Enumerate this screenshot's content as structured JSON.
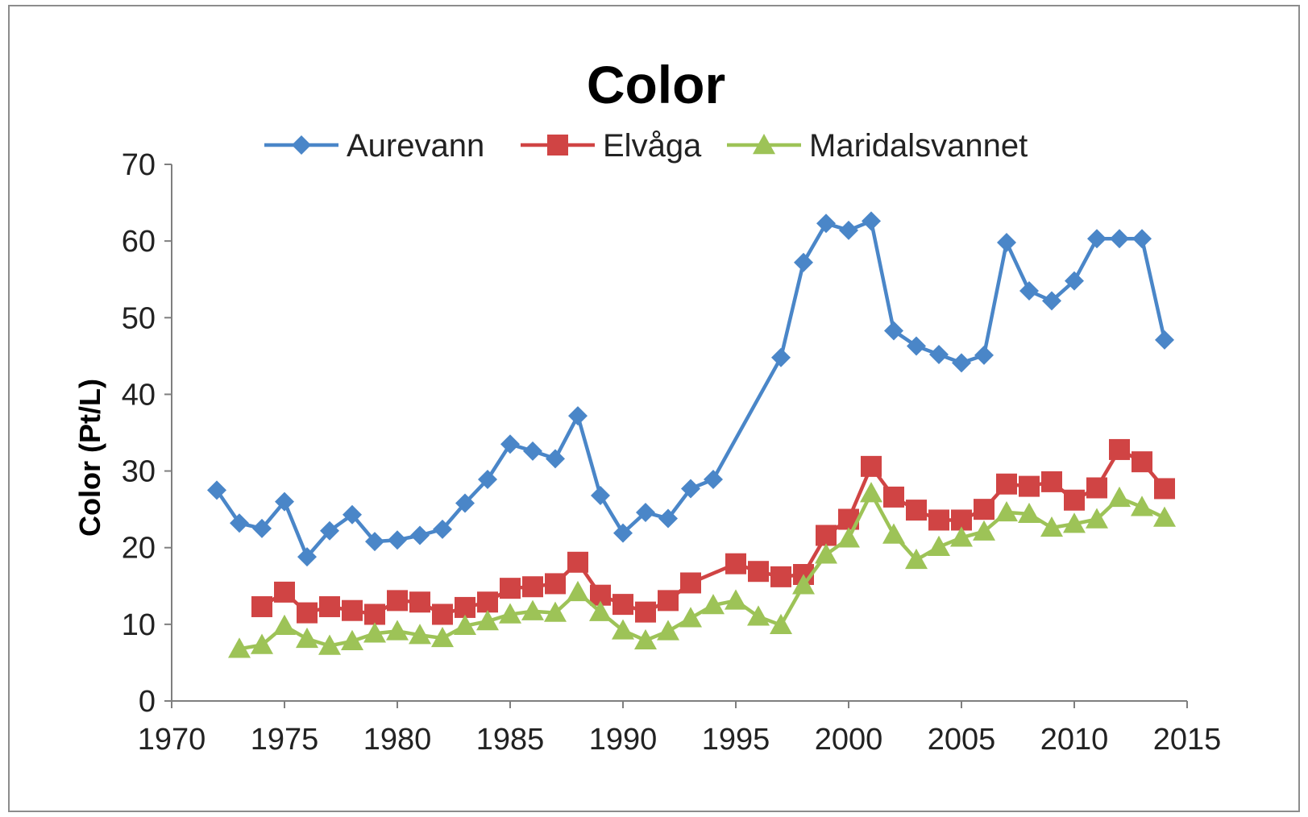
{
  "chart_data": {
    "type": "line",
    "title": "Color",
    "xlabel": "",
    "ylabel": "Color (Pt/L)",
    "xlim": [
      1970,
      2015
    ],
    "ylim": [
      0,
      70
    ],
    "x_ticks": [
      1970,
      1975,
      1980,
      1985,
      1990,
      1995,
      2000,
      2005,
      2010,
      2015
    ],
    "y_ticks": [
      0,
      10,
      20,
      30,
      40,
      50,
      60,
      70
    ],
    "grid": false,
    "legend_position": "top",
    "series": [
      {
        "name": "Aurevann",
        "color": "#4a86c8",
        "marker": "diamond",
        "x": [
          1972,
          1973,
          1974,
          1975,
          1976,
          1977,
          1978,
          1979,
          1980,
          1981,
          1982,
          1983,
          1984,
          1985,
          1986,
          1987,
          1988,
          1989,
          1990,
          1991,
          1992,
          1993,
          1994,
          1997,
          1998,
          1999,
          2000,
          2001,
          2002,
          2003,
          2004,
          2005,
          2006,
          2007,
          2008,
          2009,
          2010,
          2011,
          2012,
          2013,
          2014
        ],
        "values": [
          27.5,
          23.2,
          22.5,
          26,
          18.8,
          22.2,
          24.3,
          20.8,
          21,
          21.6,
          22.4,
          25.8,
          28.9,
          33.5,
          32.6,
          31.6,
          37.2,
          26.8,
          21.9,
          24.6,
          23.8,
          27.7,
          28.9,
          44.8,
          57.2,
          62.3,
          61.4,
          62.6,
          48.3,
          46.3,
          45.2,
          44.1,
          45.1,
          59.8,
          53.5,
          52.2,
          54.8,
          60.3,
          60.3,
          60.3,
          47.1
        ]
      },
      {
        "name": "Elvåga",
        "color": "#d04444",
        "marker": "square",
        "x": [
          1974,
          1975,
          1976,
          1977,
          1978,
          1979,
          1980,
          1981,
          1982,
          1983,
          1984,
          1985,
          1986,
          1987,
          1988,
          1989,
          1990,
          1991,
          1992,
          1993,
          1995,
          1996,
          1997,
          1998,
          1999,
          2000,
          2001,
          2002,
          2003,
          2004,
          2005,
          2006,
          2007,
          2008,
          2009,
          2010,
          2011,
          2012,
          2013,
          2014
        ],
        "values": [
          12.3,
          14.2,
          11.5,
          12.3,
          11.8,
          11.3,
          13.1,
          12.9,
          11.3,
          12.2,
          12.9,
          14.7,
          14.9,
          15.3,
          18.1,
          13.8,
          12.6,
          11.6,
          13.1,
          15.4,
          17.9,
          16.9,
          16.2,
          16.5,
          21.6,
          23.7,
          30.6,
          26.6,
          24.9,
          23.6,
          23.6,
          25,
          28.3,
          28,
          28.6,
          26.2,
          27.8,
          32.8,
          31.2,
          27.7
        ]
      },
      {
        "name": "Maridalsvannet",
        "color": "#9dc357",
        "marker": "triangle",
        "x": [
          1973,
          1974,
          1975,
          1976,
          1977,
          1978,
          1979,
          1980,
          1981,
          1982,
          1983,
          1984,
          1985,
          1986,
          1987,
          1988,
          1989,
          1990,
          1991,
          1992,
          1993,
          1994,
          1995,
          1996,
          1997,
          1998,
          1999,
          2000,
          2001,
          2002,
          2003,
          2004,
          2005,
          2006,
          2007,
          2008,
          2009,
          2010,
          2011,
          2012,
          2013,
          2014
        ],
        "values": [
          6.8,
          7.3,
          9.8,
          8.1,
          7.2,
          7.8,
          8.8,
          9.1,
          8.6,
          8.2,
          9.8,
          10.4,
          11.3,
          11.7,
          11.5,
          14.2,
          11.6,
          9.2,
          7.9,
          9.1,
          10.8,
          12.5,
          13.1,
          11,
          9.9,
          15.1,
          19.1,
          21.2,
          27.1,
          21.7,
          18.4,
          20.1,
          21.3,
          22.1,
          24.6,
          24.4,
          22.6,
          23.1,
          23.7,
          26.5,
          25.3,
          23.9
        ]
      }
    ]
  }
}
